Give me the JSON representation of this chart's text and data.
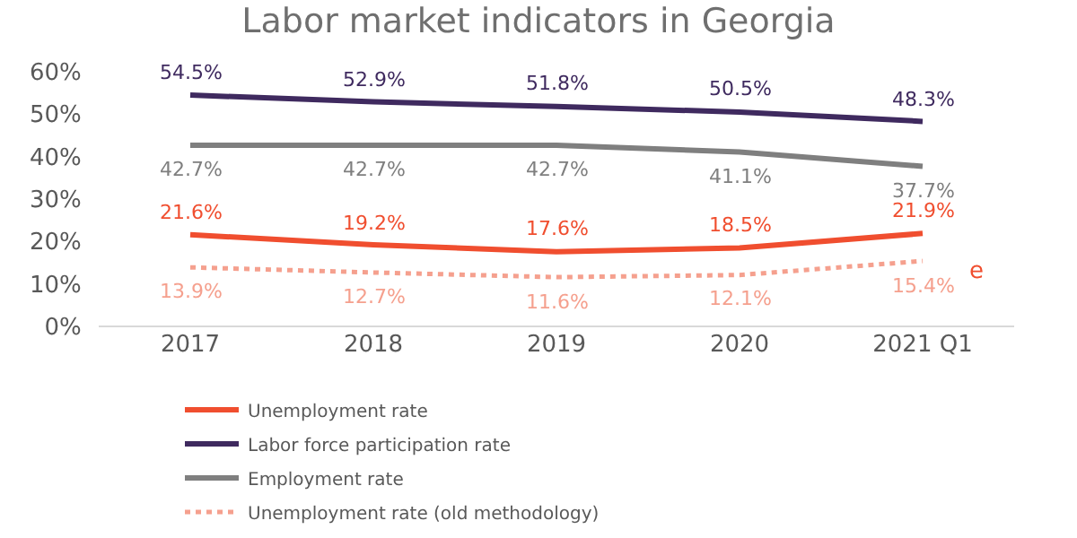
{
  "chart_data": {
    "type": "line",
    "title": "Labor market indicators in Georgia",
    "categories": [
      "2017",
      "2018",
      "2019",
      "2020",
      "2021 Q1"
    ],
    "series": [
      {
        "name": "Unemployment rate",
        "color": "#f04e2f",
        "values": [
          21.6,
          19.2,
          17.6,
          18.5,
          21.9
        ],
        "value_labels": [
          "21.6%",
          "19.2%",
          "17.6%",
          "18.5%",
          "21.9%"
        ],
        "line_style": "solid"
      },
      {
        "name": "Labor force participation rate",
        "color": "#3f2a5f",
        "values": [
          54.5,
          52.9,
          51.8,
          50.5,
          48.3
        ],
        "value_labels": [
          "54.5%",
          "52.9%",
          "51.8%",
          "50.5%",
          "48.3%"
        ],
        "line_style": "solid"
      },
      {
        "name": "Employment rate",
        "color": "#7f7f7f",
        "values": [
          42.7,
          42.7,
          42.7,
          41.1,
          37.7
        ],
        "value_labels": [
          "42.7%",
          "42.7%",
          "42.7%",
          "41.1%",
          "37.7%"
        ],
        "line_style": "solid"
      },
      {
        "name": "Unemployment rate (old methodology)",
        "color": "#f5a08e",
        "values": [
          13.9,
          12.7,
          11.6,
          12.1,
          15.4
        ],
        "value_labels": [
          "13.9%",
          "12.7%",
          "11.6%",
          "12.1%",
          "15.4%"
        ],
        "line_style": "dotted"
      }
    ],
    "annotations": [
      {
        "text": "e",
        "x": "2021 Q1",
        "y": 15.4
      }
    ],
    "ylim": [
      0,
      60
    ],
    "yticks": [
      {
        "value": 0,
        "label": "0%"
      },
      {
        "value": 10,
        "label": "10%"
      },
      {
        "value": 20,
        "label": "20%"
      },
      {
        "value": 30,
        "label": "30%"
      },
      {
        "value": 40,
        "label": "40%"
      },
      {
        "value": 50,
        "label": "50%"
      },
      {
        "value": 60,
        "label": "60%"
      }
    ],
    "grid": false,
    "legend": "bottom",
    "marker": "none"
  }
}
